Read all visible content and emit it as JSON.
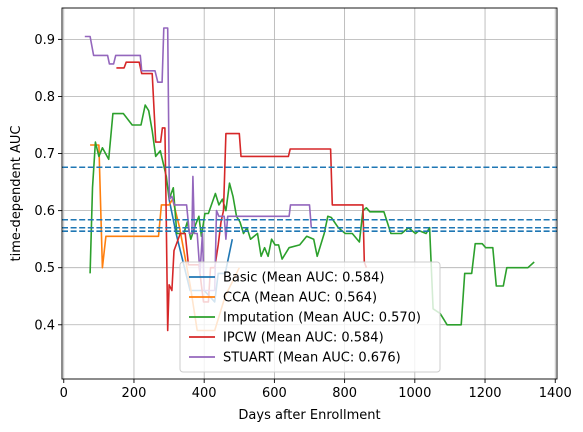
{
  "chart_data": {
    "type": "line",
    "xlabel": "Days after Enrollment",
    "ylabel": "time-dependent AUC",
    "xlim": [
      -5,
      1405
    ],
    "ylim": [
      0.305,
      0.955
    ],
    "x_ticks": [
      0,
      200,
      400,
      600,
      800,
      1000,
      1200,
      1400
    ],
    "y_ticks": [
      0.4,
      0.5,
      0.6,
      0.7,
      0.8,
      0.9
    ],
    "grid": true,
    "legend_position": "lower-center",
    "series": [
      {
        "name": "Basic (Mean AUC: 0.584)",
        "color": "#1f77b4",
        "points": [
          [
            300,
            0.62
          ],
          [
            320,
            0.56
          ],
          [
            360,
            0.46
          ],
          [
            400,
            0.46
          ],
          [
            430,
            0.44
          ],
          [
            440,
            0.49
          ],
          [
            460,
            0.49
          ],
          [
            480,
            0.55
          ]
        ]
      },
      {
        "name": "CCA (Mean AUC: 0.564)",
        "color": "#ff7f0e",
        "points": [
          [
            75,
            0.715
          ],
          [
            100,
            0.715
          ],
          [
            110,
            0.5
          ],
          [
            120,
            0.555
          ],
          [
            270,
            0.555
          ],
          [
            278,
            0.61
          ],
          [
            300,
            0.61
          ],
          [
            310,
            0.62
          ],
          [
            330,
            0.57
          ],
          [
            360,
            0.47
          ],
          [
            380,
            0.39
          ],
          [
            430,
            0.39
          ],
          [
            460,
            0.45
          ],
          [
            500,
            0.5
          ]
        ]
      },
      {
        "name": "Imputation (Mean AUC: 0.570)",
        "color": "#2ca02c",
        "points": [
          [
            75,
            0.49
          ],
          [
            82,
            0.64
          ],
          [
            90,
            0.72
          ],
          [
            100,
            0.695
          ],
          [
            110,
            0.71
          ],
          [
            128,
            0.69
          ],
          [
            140,
            0.77
          ],
          [
            170,
            0.77
          ],
          [
            195,
            0.75
          ],
          [
            220,
            0.75
          ],
          [
            232,
            0.785
          ],
          [
            242,
            0.775
          ],
          [
            252,
            0.74
          ],
          [
            262,
            0.695
          ],
          [
            275,
            0.705
          ],
          [
            292,
            0.66
          ],
          [
            300,
            0.62
          ],
          [
            312,
            0.64
          ],
          [
            322,
            0.56
          ],
          [
            342,
            0.56
          ],
          [
            352,
            0.58
          ],
          [
            362,
            0.55
          ],
          [
            375,
            0.575
          ],
          [
            385,
            0.59
          ],
          [
            392,
            0.555
          ],
          [
            402,
            0.595
          ],
          [
            412,
            0.595
          ],
          [
            432,
            0.63
          ],
          [
            442,
            0.61
          ],
          [
            452,
            0.62
          ],
          [
            462,
            0.6
          ],
          [
            472,
            0.648
          ],
          [
            482,
            0.625
          ],
          [
            492,
            0.59
          ],
          [
            502,
            0.58
          ],
          [
            512,
            0.56
          ],
          [
            522,
            0.57
          ],
          [
            532,
            0.55
          ],
          [
            552,
            0.56
          ],
          [
            562,
            0.52
          ],
          [
            572,
            0.535
          ],
          [
            582,
            0.52
          ],
          [
            592,
            0.55
          ],
          [
            602,
            0.54
          ],
          [
            612,
            0.54
          ],
          [
            622,
            0.515
          ],
          [
            642,
            0.535
          ],
          [
            672,
            0.54
          ],
          [
            692,
            0.555
          ],
          [
            712,
            0.55
          ],
          [
            722,
            0.52
          ],
          [
            742,
            0.56
          ],
          [
            752,
            0.59
          ],
          [
            762,
            0.588
          ],
          [
            782,
            0.57
          ],
          [
            802,
            0.56
          ],
          [
            822,
            0.56
          ],
          [
            842,
            0.545
          ],
          [
            852,
            0.6
          ],
          [
            862,
            0.605
          ],
          [
            872,
            0.598
          ],
          [
            912,
            0.598
          ],
          [
            932,
            0.56
          ],
          [
            962,
            0.56
          ],
          [
            982,
            0.57
          ],
          [
            1002,
            0.56
          ],
          [
            1012,
            0.565
          ],
          [
            1032,
            0.56
          ],
          [
            1042,
            0.57
          ],
          [
            1052,
            0.428
          ],
          [
            1072,
            0.42
          ],
          [
            1082,
            0.41
          ],
          [
            1092,
            0.4
          ],
          [
            1132,
            0.4
          ],
          [
            1142,
            0.49
          ],
          [
            1162,
            0.49
          ],
          [
            1172,
            0.542
          ],
          [
            1192,
            0.542
          ],
          [
            1202,
            0.535
          ],
          [
            1222,
            0.535
          ],
          [
            1232,
            0.468
          ],
          [
            1252,
            0.468
          ],
          [
            1262,
            0.5
          ],
          [
            1322,
            0.5
          ],
          [
            1340,
            0.51
          ]
        ]
      },
      {
        "name": "IPCW (Mean AUC: 0.584)",
        "color": "#d62728",
        "points": [
          [
            150,
            0.85
          ],
          [
            172,
            0.85
          ],
          [
            178,
            0.86
          ],
          [
            215,
            0.86
          ],
          [
            222,
            0.84
          ],
          [
            252,
            0.84
          ],
          [
            262,
            0.72
          ],
          [
            276,
            0.72
          ],
          [
            281,
            0.745
          ],
          [
            288,
            0.745
          ],
          [
            292,
            0.58
          ],
          [
            296,
            0.39
          ],
          [
            300,
            0.47
          ],
          [
            308,
            0.46
          ],
          [
            314,
            0.53
          ],
          [
            332,
            0.56
          ],
          [
            346,
            0.56
          ],
          [
            355,
            0.505
          ],
          [
            385,
            0.505
          ],
          [
            398,
            0.44
          ],
          [
            412,
            0.44
          ],
          [
            418,
            0.5
          ],
          [
            430,
            0.5
          ],
          [
            440,
            0.54
          ],
          [
            448,
            0.58
          ],
          [
            455,
            0.6
          ],
          [
            462,
            0.735
          ],
          [
            500,
            0.735
          ],
          [
            505,
            0.695
          ],
          [
            640,
            0.695
          ],
          [
            645,
            0.708
          ],
          [
            760,
            0.708
          ],
          [
            765,
            0.61
          ],
          [
            852,
            0.61
          ],
          [
            856,
            0.51
          ],
          [
            862,
            0.5
          ]
        ]
      },
      {
        "name": "STUART (Mean AUC: 0.676)",
        "color": "#9467bd",
        "points": [
          [
            60,
            0.905
          ],
          [
            75,
            0.905
          ],
          [
            85,
            0.872
          ],
          [
            125,
            0.872
          ],
          [
            130,
            0.857
          ],
          [
            142,
            0.857
          ],
          [
            148,
            0.872
          ],
          [
            218,
            0.872
          ],
          [
            222,
            0.845
          ],
          [
            260,
            0.845
          ],
          [
            268,
            0.825
          ],
          [
            280,
            0.825
          ],
          [
            285,
            0.92
          ],
          [
            296,
            0.92
          ],
          [
            301,
            0.62
          ],
          [
            308,
            0.625
          ],
          [
            315,
            0.61
          ],
          [
            350,
            0.61
          ],
          [
            358,
            0.56
          ],
          [
            365,
            0.56
          ],
          [
            368,
            0.66
          ],
          [
            372,
            0.56
          ],
          [
            380,
            0.56
          ],
          [
            388,
            0.49
          ],
          [
            395,
            0.56
          ],
          [
            400,
            0.46
          ],
          [
            430,
            0.46
          ],
          [
            435,
            0.6
          ],
          [
            442,
            0.59
          ],
          [
            457,
            0.59
          ],
          [
            462,
            0.55
          ],
          [
            467,
            0.59
          ],
          [
            642,
            0.59
          ],
          [
            646,
            0.61
          ],
          [
            700,
            0.61
          ],
          [
            705,
            0.57
          ]
        ]
      }
    ],
    "hlines": [
      {
        "y": 0.676,
        "color": "#1f77b4"
      },
      {
        "y": 0.584,
        "color": "#1f77b4"
      },
      {
        "y": 0.57,
        "color": "#1f77b4"
      },
      {
        "y": 0.564,
        "color": "#1f77b4"
      }
    ]
  }
}
